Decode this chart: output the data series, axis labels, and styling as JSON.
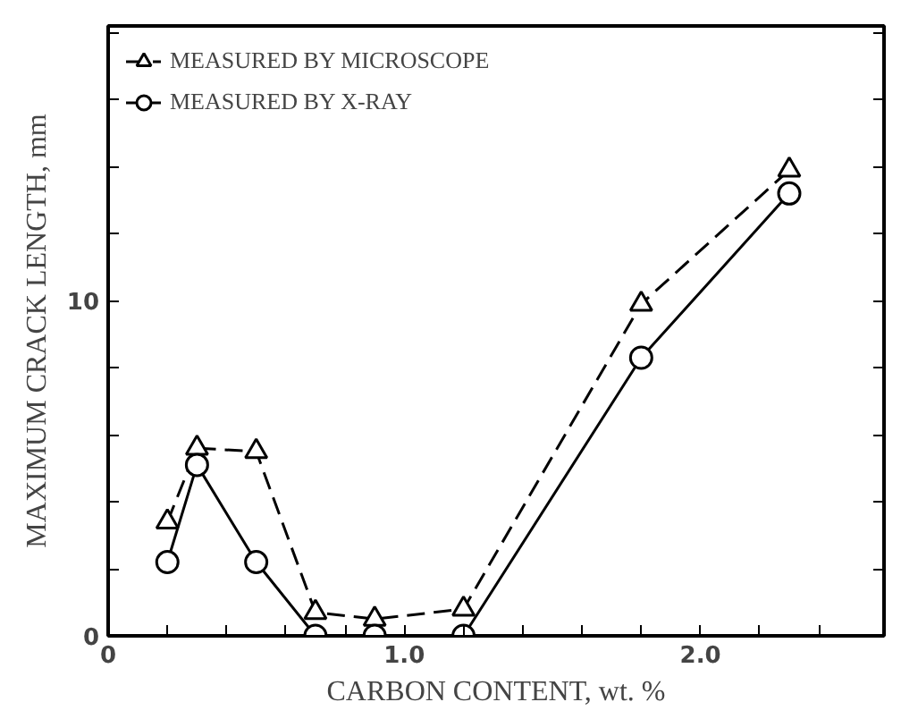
{
  "chart_data": {
    "type": "line",
    "xlabel": "CARBON CONTENT, wt. %",
    "ylabel": "MAXIMUM CRACK LENGTH, mm",
    "x": [
      0.2,
      0.3,
      0.5,
      0.7,
      0.9,
      1.2,
      1.8,
      2.3
    ],
    "series": [
      {
        "name": "MEASURED BY MICROSCOPE",
        "color": "#000000",
        "marker": "triangle",
        "line_style": "dashed",
        "values": [
          3.4,
          5.6,
          5.5,
          0.7,
          0.5,
          0.8,
          9.9,
          13.9
        ]
      },
      {
        "name": "MEASURED BY X-RAY",
        "color": "#000000",
        "marker": "circle",
        "line_style": "solid",
        "values": [
          2.2,
          5.1,
          2.2,
          0,
          0,
          0,
          8.3,
          13.2
        ]
      }
    ],
    "xlim": [
      0,
      2.62
    ],
    "ylim": [
      0,
      18.2
    ],
    "xticks": [
      0,
      {
        "value": 0.2,
        "label": null
      },
      {
        "value": 0.4,
        "label": null
      },
      {
        "value": 0.6,
        "label": null
      },
      {
        "value": 0.8,
        "label": null
      },
      {
        "value": 1.0,
        "label": "1.0"
      },
      {
        "value": 1.2,
        "label": null
      },
      {
        "value": 1.4,
        "label": null
      },
      {
        "value": 1.6,
        "label": null
      },
      {
        "value": 1.8,
        "label": null
      },
      {
        "value": 2.0,
        "label": "2.0"
      },
      {
        "value": 2.2,
        "label": null
      },
      {
        "value": 2.4,
        "label": null
      }
    ],
    "yticks": [
      0,
      {
        "value": 2,
        "label": null
      },
      {
        "value": 4,
        "label": null
      },
      {
        "value": 6,
        "label": null
      },
      {
        "value": 8,
        "label": null
      },
      10,
      {
        "value": 12,
        "label": null
      },
      {
        "value": 14,
        "label": null
      },
      {
        "value": 16,
        "label": null
      },
      {
        "value": 18,
        "label": null
      }
    ],
    "grid": false,
    "legend": "top left"
  }
}
